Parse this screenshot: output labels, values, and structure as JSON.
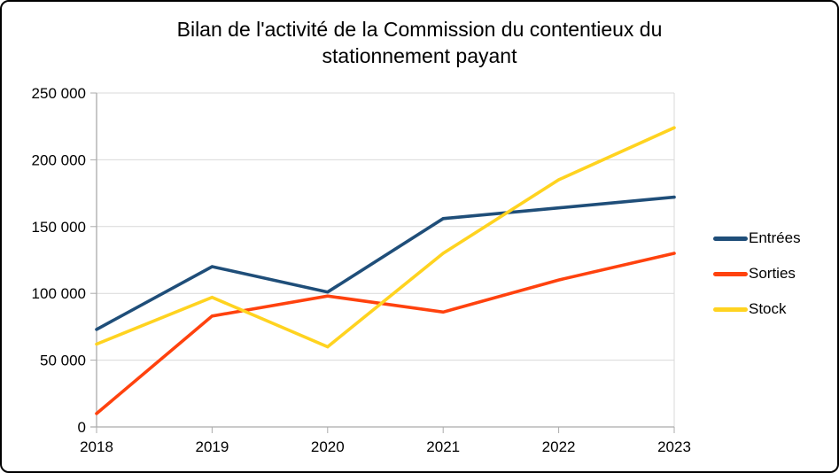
{
  "chart_data": {
    "type": "line",
    "title": "Bilan de l'activité de la Commission du contentieux du stationnement payant",
    "title_lines": [
      "Bilan de l'activité de la Commission du contentieux du",
      "stationnement payant"
    ],
    "categories": [
      "2018",
      "2019",
      "2020",
      "2021",
      "2022",
      "2023"
    ],
    "ylim": [
      0,
      250000
    ],
    "y_ticks": [
      0,
      50000,
      100000,
      150000,
      200000,
      250000
    ],
    "y_tick_labels": [
      "0",
      "50 000",
      "100 000",
      "150 000",
      "200 000",
      "250 000"
    ],
    "grid": "horizontal",
    "legend_position": "right",
    "series": [
      {
        "name": "Entrées",
        "color": "#1F4E79",
        "values": [
          73000,
          120000,
          101000,
          156000,
          164000,
          172000
        ]
      },
      {
        "name": "Sorties",
        "color": "#FF420E",
        "values": [
          10000,
          83000,
          98000,
          86000,
          110000,
          130000
        ]
      },
      {
        "name": "Stock",
        "color": "#FFD320",
        "values": [
          62000,
          97000,
          60000,
          130000,
          185000,
          224000
        ]
      }
    ],
    "colors": {
      "gridline": "#D9D9D9",
      "axis": "#ABABAB",
      "text": "#000000"
    }
  }
}
